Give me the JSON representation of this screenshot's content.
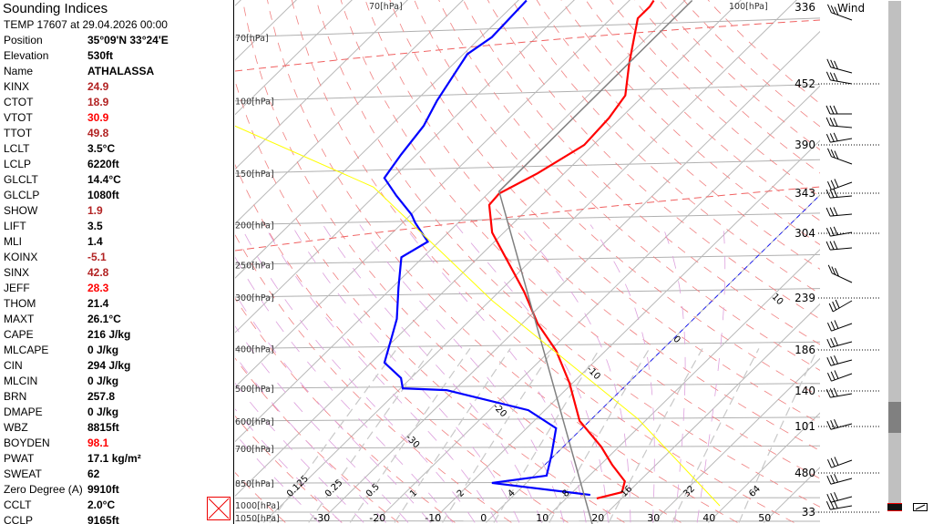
{
  "panel": {
    "title": "Sounding Indices",
    "subtitle": "TEMP 17607 at 29.04.2026 00:00",
    "rows": [
      {
        "k": "Position",
        "v": "35°09'N 33°24'E",
        "color": "#000000"
      },
      {
        "k": "Elevation",
        "v": "530ft",
        "color": "#000000"
      },
      {
        "k": "Name",
        "v": "ATHALASSA",
        "color": "#000000"
      },
      {
        "k": "KINX",
        "v": "24.9",
        "color": "#b22222"
      },
      {
        "k": "CTOT",
        "v": "18.9",
        "color": "#b22222"
      },
      {
        "k": "VTOT",
        "v": "30.9",
        "color": "#ff0000"
      },
      {
        "k": "TTOT",
        "v": "49.8",
        "color": "#b22222"
      },
      {
        "k": "LCLT",
        "v": "3.5°C",
        "color": "#000000"
      },
      {
        "k": "LCLP",
        "v": "6220ft",
        "color": "#000000"
      },
      {
        "k": "GLCLT",
        "v": "14.4°C",
        "color": "#000000"
      },
      {
        "k": "GLCLP",
        "v": "1080ft",
        "color": "#000000"
      },
      {
        "k": "SHOW",
        "v": "1.9",
        "color": "#b22222"
      },
      {
        "k": "LIFT",
        "v": "3.5",
        "color": "#000000"
      },
      {
        "k": "MLI",
        "v": "1.4",
        "color": "#000000"
      },
      {
        "k": "KOINX",
        "v": "-5.1",
        "color": "#b22222"
      },
      {
        "k": "SINX",
        "v": "42.8",
        "color": "#b22222"
      },
      {
        "k": "JEFF",
        "v": "28.3",
        "color": "#ff0000"
      },
      {
        "k": "THOM",
        "v": "21.4",
        "color": "#000000"
      },
      {
        "k": "MAXT",
        "v": "26.1°C",
        "color": "#000000"
      },
      {
        "k": "CAPE",
        "v": "216 J/kg",
        "color": "#000000"
      },
      {
        "k": "MLCAPE",
        "v": "0 J/kg",
        "color": "#000000"
      },
      {
        "k": "CIN",
        "v": "294 J/kg",
        "color": "#000000"
      },
      {
        "k": "MLCIN",
        "v": "0 J/kg",
        "color": "#000000"
      },
      {
        "k": "BRN",
        "v": "257.8",
        "color": "#000000"
      },
      {
        "k": "DMAPE",
        "v": "0 J/kg",
        "color": "#000000"
      },
      {
        "k": "WBZ",
        "v": "8815ft",
        "color": "#000000"
      },
      {
        "k": "BOYDEN",
        "v": "98.1",
        "color": "#ff0000"
      },
      {
        "k": "PWAT",
        "v": "17.1 kg/m²",
        "color": "#000000"
      },
      {
        "k": "SWEAT",
        "v": "62",
        "color": "#000000"
      },
      {
        "k": "Zero Degree (A)",
        "v": "9910ft",
        "color": "#000000"
      },
      {
        "k": "CCLT",
        "v": "2.0°C",
        "color": "#000000"
      },
      {
        "k": "CCLP",
        "v": "9165ft",
        "color": "#000000"
      }
    ]
  },
  "wind_title": "Wind",
  "chart_data": {
    "type": "line",
    "diagram": "skew-T log-P",
    "pressure_labels": [
      {
        "p": 1050,
        "label": "1050[hPa]"
      },
      {
        "p": 1000,
        "label": "1000[hPa]"
      },
      {
        "p": 850,
        "label": "850[hPa]"
      },
      {
        "p": 700,
        "label": "700[hPa]"
      },
      {
        "p": 600,
        "label": "600[hPa]"
      },
      {
        "p": 500,
        "label": "500[hPa]"
      },
      {
        "p": 400,
        "label": "400[hPa]"
      },
      {
        "p": 300,
        "label": "300[hPa]"
      },
      {
        "p": 250,
        "label": "250[hPa]"
      },
      {
        "p": 200,
        "label": "200[hPa]"
      },
      {
        "p": 150,
        "label": "150[hPa]"
      },
      {
        "p": 100,
        "label": "100[hPa]"
      },
      {
        "p": 70,
        "label": "70[hPa]"
      }
    ],
    "top_labels": [
      "70[hPa]",
      "100[hPa]"
    ],
    "temperature_ticks": [
      -30,
      -20,
      -10,
      0,
      10,
      20,
      30,
      40,
      50
    ],
    "mixing_ratio_ticks": [
      "0.125",
      "0.25",
      "0.5",
      "1",
      "2",
      "4",
      "8",
      "16",
      "32",
      "64"
    ],
    "isotherm_labels": [
      "-30",
      "-20",
      "-10",
      "0",
      "10",
      "20",
      "30",
      "40"
    ],
    "right_axis_labels": [
      "336",
      "452",
      "390",
      "343",
      "304",
      "239",
      "186",
      "140",
      "101",
      "480",
      "33"
    ],
    "series": [
      {
        "role": "temperature",
        "color": "#ff0000",
        "points": [
          [
            926,
            15.5
          ],
          [
            894,
            18.9
          ],
          [
            841,
            17.4
          ],
          [
            767,
            12.1
          ],
          [
            693,
            6.8
          ],
          [
            600,
            -1.8
          ],
          [
            485,
            -10.6
          ],
          [
            405,
            -18.9
          ],
          [
            348,
            -27.2
          ],
          [
            291,
            -35.5
          ],
          [
            237,
            -45.8
          ],
          [
            209,
            -52.1
          ],
          [
            179,
            -57.7
          ],
          [
            168,
            -58.0
          ],
          [
            150,
            -54.8
          ],
          [
            128,
            -51.6
          ],
          [
            110,
            -52.1
          ],
          [
            97,
            -53.3
          ],
          [
            81,
            -58.5
          ],
          [
            63,
            -65.2
          ],
          [
            59,
            -65.2
          ],
          [
            57,
            -65.6
          ]
        ]
      },
      {
        "role": "dewpoint",
        "color": "#0000ff",
        "points": [
          [
            908,
            13.7
          ],
          [
            849,
            -6.2
          ],
          [
            815,
            2.3
          ],
          [
            729,
            -0.5
          ],
          [
            625,
            -4.7
          ],
          [
            565,
            -13.0
          ],
          [
            505,
            -31.4
          ],
          [
            500,
            -39.6
          ],
          [
            472,
            -41.8
          ],
          [
            433,
            -47.6
          ],
          [
            375,
            -51.0
          ],
          [
            339,
            -53.4
          ],
          [
            284,
            -58.9
          ],
          [
            240,
            -63.9
          ],
          [
            220,
            -62.0
          ],
          [
            198,
            -67.7
          ],
          [
            189,
            -69.9
          ],
          [
            170,
            -76.1
          ],
          [
            154,
            -81.5
          ],
          [
            135,
            -82.8
          ],
          [
            115,
            -84.0
          ],
          [
            100,
            -86.2
          ],
          [
            77,
            -89.3
          ],
          [
            70,
            -88.0
          ],
          [
            57,
            -88.5
          ]
        ]
      },
      {
        "role": "parcel",
        "color": "#808080",
        "points": [
          [
            1069,
            19.4
          ],
          [
            166,
            -58.4
          ],
          [
            57,
            -58.7
          ]
        ]
      },
      {
        "role": "auxiliary",
        "color": "#ffff00",
        "points": [
          [
            115,
            -118
          ],
          [
            162,
            -81.8
          ],
          [
            306,
            -39.6
          ],
          [
            594,
            8.4
          ],
          [
            965,
            39
          ]
        ]
      },
      {
        "role": "zero-isotherm",
        "color": "#0000ff",
        "points": [
          [
            767,
            0
          ],
          [
            170,
            0
          ]
        ]
      }
    ],
    "scroll_fraction": 0.8
  }
}
